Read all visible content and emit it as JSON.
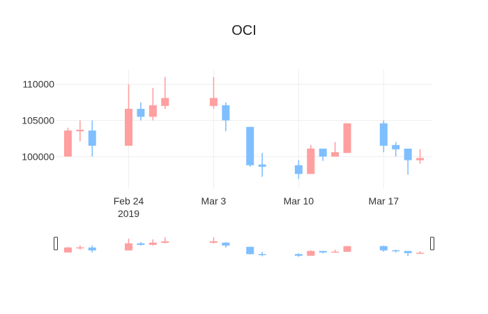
{
  "chart_data": {
    "type": "candlestick",
    "title": "OCI",
    "xlabel": "",
    "ylabel": "",
    "x_tick_labels": [
      {
        "date": "2019-02-24",
        "line1": "Feb 24",
        "line2": "2019"
      },
      {
        "date": "2019-03-03",
        "line1": "Mar 3",
        "line2": ""
      },
      {
        "date": "2019-03-10",
        "line1": "Mar 10",
        "line2": ""
      },
      {
        "date": "2019-03-17",
        "line1": "Mar 17",
        "line2": ""
      }
    ],
    "y_ticks": [
      100000,
      105000,
      110000
    ],
    "y_tick_labels": [
      "100000",
      "105000",
      "110000"
    ],
    "xlim": [
      "2019-02-18",
      "2019-03-21"
    ],
    "ylim": [
      95600,
      112000
    ],
    "grid": true,
    "legend": "none",
    "range_slider": true,
    "colors": {
      "increasing": "#7fbfff",
      "decreasing": "#ff9f9f"
    },
    "candles": [
      {
        "date": "2019-02-19",
        "open": 103600,
        "high": 104000,
        "low": 100000,
        "close": 100000
      },
      {
        "date": "2019-02-20",
        "open": 103700,
        "high": 105000,
        "low": 102100,
        "close": 103500
      },
      {
        "date": "2019-02-21",
        "open": 101500,
        "high": 105000,
        "low": 100000,
        "close": 103600
      },
      {
        "date": "2019-02-24",
        "open": 106600,
        "high": 110000,
        "low": 101500,
        "close": 101500
      },
      {
        "date": "2019-02-25",
        "open": 105500,
        "high": 107500,
        "low": 105000,
        "close": 106600
      },
      {
        "date": "2019-02-26",
        "open": 107100,
        "high": 109500,
        "low": 105000,
        "close": 105500
      },
      {
        "date": "2019-02-27",
        "open": 108100,
        "high": 111000,
        "low": 106600,
        "close": 107000
      },
      {
        "date": "2019-03-03",
        "open": 108100,
        "high": 111000,
        "low": 106600,
        "close": 107000
      },
      {
        "date": "2019-03-04",
        "open": 105000,
        "high": 107500,
        "low": 103500,
        "close": 107100
      },
      {
        "date": "2019-03-06",
        "open": 98800,
        "high": 104100,
        "low": 98600,
        "close": 104100
      },
      {
        "date": "2019-03-07",
        "open": 98600,
        "high": 100500,
        "low": 97200,
        "close": 98900
      },
      {
        "date": "2019-03-10",
        "open": 97600,
        "high": 99500,
        "low": 96900,
        "close": 98800
      },
      {
        "date": "2019-03-11",
        "open": 101100,
        "high": 101600,
        "low": 97600,
        "close": 97600
      },
      {
        "date": "2019-03-12",
        "open": 100000,
        "high": 101100,
        "low": 99400,
        "close": 101100
      },
      {
        "date": "2019-03-13",
        "open": 100600,
        "high": 102000,
        "low": 100000,
        "close": 100000
      },
      {
        "date": "2019-03-14",
        "open": 104600,
        "high": 104600,
        "low": 100500,
        "close": 100500
      },
      {
        "date": "2019-03-17",
        "open": 101500,
        "high": 105000,
        "low": 100600,
        "close": 104600
      },
      {
        "date": "2019-03-18",
        "open": 101000,
        "high": 102000,
        "low": 100000,
        "close": 101600
      },
      {
        "date": "2019-03-19",
        "open": 99500,
        "high": 101100,
        "low": 97500,
        "close": 101100
      },
      {
        "date": "2019-03-20",
        "open": 99800,
        "high": 101000,
        "low": 99000,
        "close": 99500
      }
    ]
  }
}
